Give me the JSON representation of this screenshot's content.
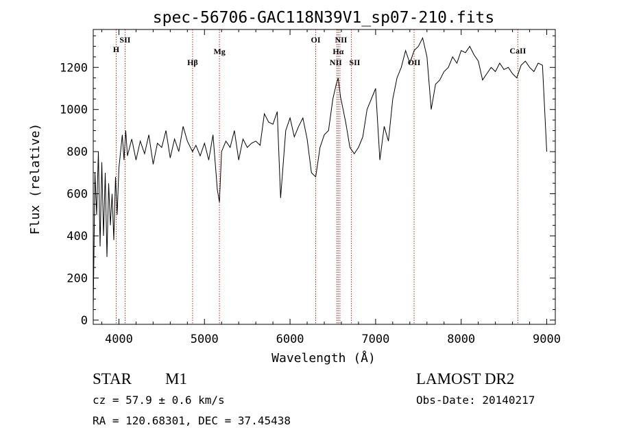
{
  "chart_data": {
    "type": "line",
    "title": "spec-56706-GAC118N39V1_sp07-210.fits",
    "xlabel": "Wavelength (Å)",
    "ylabel": "Flux (relative)",
    "xlim": [
      3700,
      9100
    ],
    "ylim": [
      -20,
      1380
    ],
    "xticks": [
      4000,
      5000,
      6000,
      7000,
      8000,
      9000
    ],
    "yticks": [
      0,
      200,
      400,
      600,
      800,
      1000,
      1200
    ],
    "grid": false,
    "series": [
      {
        "x": [
          3700,
          3720,
          3740,
          3760,
          3780,
          3800,
          3820,
          3840,
          3860,
          3880,
          3900,
          3920,
          3940,
          3960,
          3980,
          4000,
          4020,
          4040,
          4060,
          4080,
          4100,
          4150,
          4200,
          4250,
          4300,
          4350,
          4400,
          4450,
          4500,
          4550,
          4600,
          4650,
          4700,
          4750,
          4800,
          4860,
          4900,
          4950,
          5000,
          5050,
          5100,
          5150,
          5175,
          5200,
          5250,
          5300,
          5350,
          5400,
          5450,
          5500,
          5550,
          5600,
          5650,
          5700,
          5750,
          5800,
          5850,
          5890,
          5950,
          6000,
          6050,
          6100,
          6150,
          6200,
          6250,
          6300,
          6350,
          6400,
          6450,
          6500,
          6540,
          6563,
          6590,
          6620,
          6650,
          6700,
          6750,
          6800,
          6850,
          6900,
          6950,
          7000,
          7050,
          7100,
          7150,
          7200,
          7250,
          7300,
          7350,
          7400,
          7450,
          7500,
          7550,
          7600,
          7650,
          7700,
          7750,
          7800,
          7850,
          7900,
          7950,
          8000,
          8050,
          8100,
          8150,
          8200,
          8250,
          8300,
          8350,
          8400,
          8450,
          8500,
          8550,
          8600,
          8650,
          8700,
          8750,
          8800,
          8850,
          8900,
          8950,
          9000
        ],
        "y": [
          50,
          700,
          500,
          800,
          350,
          750,
          400,
          700,
          300,
          650,
          450,
          600,
          380,
          680,
          500,
          720,
          800,
          880,
          760,
          900,
          780,
          860,
          760,
          850,
          790,
          880,
          740,
          840,
          820,
          900,
          770,
          860,
          800,
          920,
          850,
          800,
          830,
          780,
          840,
          760,
          880,
          620,
          560,
          800,
          850,
          820,
          900,
          760,
          860,
          820,
          840,
          850,
          830,
          980,
          940,
          930,
          990,
          580,
          900,
          960,
          870,
          920,
          960,
          860,
          700,
          680,
          820,
          880,
          900,
          1050,
          1120,
          1150,
          1060,
          1000,
          940,
          820,
          790,
          820,
          870,
          1000,
          1050,
          1100,
          760,
          920,
          850,
          1050,
          1150,
          1200,
          1280,
          1220,
          1280,
          1300,
          1340,
          1250,
          1000,
          1120,
          1140,
          1180,
          1200,
          1250,
          1220,
          1280,
          1270,
          1300,
          1260,
          1230,
          1140,
          1170,
          1200,
          1180,
          1220,
          1190,
          1200,
          1170,
          1150,
          1210,
          1230,
          1200,
          1180,
          1220,
          1210,
          800
        ]
      }
    ],
    "annotations": [
      {
        "label": "H",
        "x": 3968
      },
      {
        "label": "SII",
        "x": 4072
      },
      {
        "label": "Hβ",
        "x": 4861
      },
      {
        "label": "Mg",
        "x": 5175
      },
      {
        "label": "OI",
        "x": 6300
      },
      {
        "label": "NII",
        "x": 6548
      },
      {
        "label": "Hα",
        "x": 6563
      },
      {
        "label": "NII",
        "x": 6583
      },
      {
        "label": "SII",
        "x": 6716
      },
      {
        "label": "OII",
        "x": 7450
      },
      {
        "label": "CaII",
        "x": 8662
      }
    ]
  },
  "info": {
    "object_class": "STAR",
    "subclass": "M1",
    "survey": "LAMOST DR2",
    "cz": "cz = 57.9 ± 0.6 km/s",
    "obs_date": "Obs-Date: 20140217",
    "coords": "RA = 120.68301, DEC =  37.45438"
  },
  "colors": {
    "line": "#000000",
    "marker_lines": "#b22222",
    "background": "#ffffff"
  }
}
